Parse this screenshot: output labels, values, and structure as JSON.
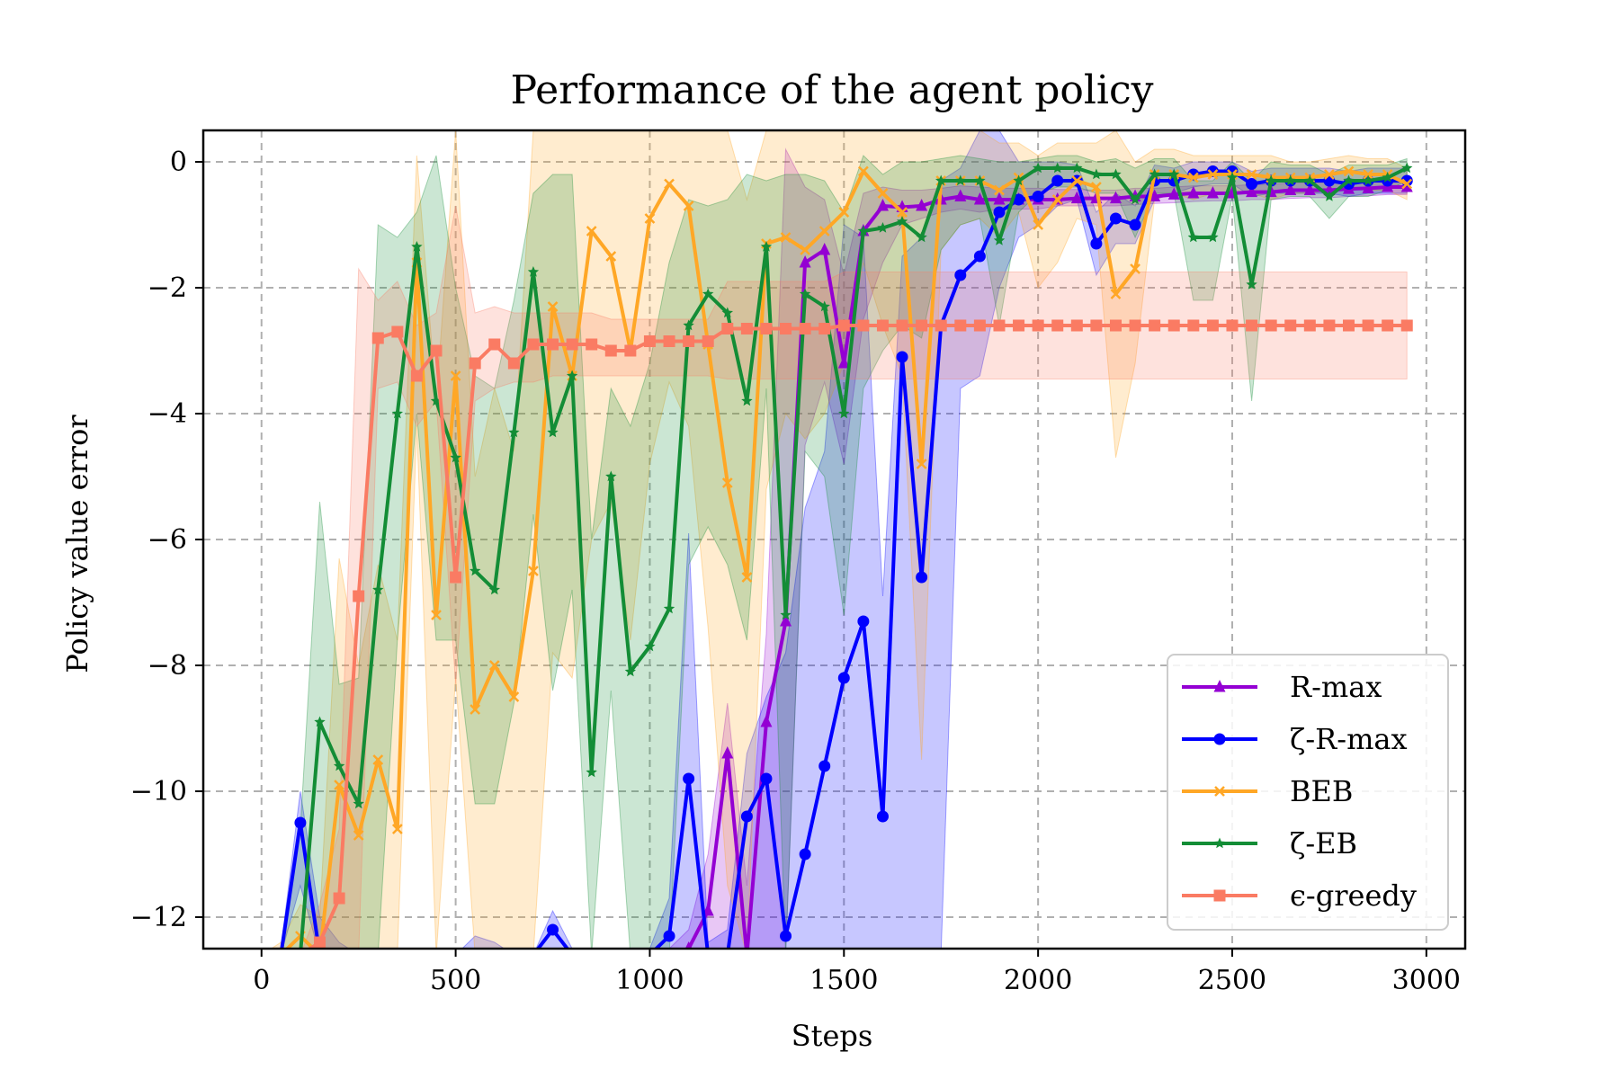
{
  "chart_data": {
    "type": "line",
    "title": "Performance of the agent policy",
    "xlabel": "Steps",
    "ylabel": "Policy value error",
    "xlim": [
      -150,
      3100
    ],
    "ylim": [
      -12.5,
      0.5
    ],
    "xticks": [
      0,
      500,
      1000,
      1500,
      2000,
      2500,
      3000
    ],
    "xtick_labels": [
      "0",
      "500",
      "1000",
      "1500",
      "2000",
      "2500",
      "3000"
    ],
    "yticks": [
      0,
      -2,
      -4,
      -6,
      -8,
      -10,
      -12
    ],
    "ytick_labels": [
      "0",
      "−2",
      "−4",
      "−6",
      "−8",
      "−10",
      "−12"
    ],
    "grid": true,
    "legend_position": "lower-right",
    "series": [
      {
        "name": "R-max",
        "color": "#9400d3",
        "marker": "triangle",
        "x": [
          1050,
          1100,
          1150,
          1200,
          1250,
          1300,
          1350,
          1400,
          1450,
          1500,
          1550,
          1600,
          1650,
          1700,
          1750,
          1800,
          1850,
          1900,
          1950,
          2000,
          2050,
          2100,
          2150,
          2200,
          2250,
          2300,
          2350,
          2400,
          2450,
          2500,
          2550,
          2600,
          2650,
          2700,
          2750,
          2800,
          2850,
          2900,
          2950
        ],
        "y": [
          -12.6,
          -12.5,
          -11.9,
          -9.4,
          -12.6,
          -8.9,
          -7.3,
          -1.6,
          -1.4,
          -3.2,
          -1.1,
          -0.7,
          -0.72,
          -0.7,
          -0.6,
          -0.55,
          -0.6,
          -0.6,
          -0.6,
          -0.6,
          -0.6,
          -0.58,
          -0.58,
          -0.58,
          -0.55,
          -0.55,
          -0.52,
          -0.5,
          -0.5,
          -0.5,
          -0.48,
          -0.48,
          -0.45,
          -0.45,
          -0.45,
          -0.43,
          -0.42,
          -0.4,
          -0.4
        ],
        "band_lower": [
          -12.6,
          -12.6,
          -12.6,
          -12.6,
          -12.6,
          -12.6,
          -12.6,
          -4.5,
          -3.5,
          -4.8,
          -2.5,
          -1.6,
          -1.0,
          -0.9,
          -0.8,
          -0.75,
          -0.8,
          -0.75,
          -0.75,
          -0.75,
          -0.7,
          -0.7,
          -0.7,
          -0.7,
          -0.68,
          -0.66,
          -0.65,
          -0.63,
          -0.62,
          -0.62,
          -0.6,
          -0.6,
          -0.58,
          -0.57,
          -0.57,
          -0.55,
          -0.54,
          -0.52,
          -0.52
        ],
        "band_upper": [
          -12.5,
          -12.2,
          -11.0,
          -8.6,
          -11.5,
          -7.5,
          0.2,
          -0.4,
          -0.6,
          -1.8,
          -0.5,
          -0.4,
          -0.45,
          -0.45,
          -0.42,
          -0.38,
          -0.4,
          -0.42,
          -0.42,
          -0.42,
          -0.44,
          -0.44,
          -0.45,
          -0.45,
          -0.42,
          -0.42,
          -0.4,
          -0.38,
          -0.38,
          -0.38,
          -0.36,
          -0.36,
          -0.33,
          -0.33,
          -0.33,
          -0.31,
          -0.3,
          -0.28,
          -0.28
        ]
      },
      {
        "name": "ζ-R-max",
        "color": "#0000ff",
        "marker": "circle",
        "x": [
          0,
          50,
          100,
          150,
          200,
          250,
          300,
          350,
          400,
          450,
          500,
          550,
          600,
          650,
          700,
          750,
          800,
          850,
          900,
          950,
          1000,
          1050,
          1100,
          1150,
          1200,
          1250,
          1300,
          1350,
          1400,
          1450,
          1500,
          1550,
          1600,
          1650,
          1700,
          1750,
          1800,
          1850,
          1900,
          1950,
          2000,
          2050,
          2100,
          2150,
          2200,
          2250,
          2300,
          2350,
          2400,
          2450,
          2500,
          2550,
          2600,
          2650,
          2700,
          2750,
          2800,
          2850,
          2900,
          2950
        ],
        "y": [
          -12.6,
          -12.6,
          -10.5,
          -12.6,
          -12.6,
          -12.6,
          -12.6,
          -12.6,
          -12.6,
          -12.6,
          -12.6,
          -12.6,
          -12.6,
          -12.6,
          -12.6,
          -12.2,
          -12.6,
          -12.6,
          -12.6,
          -12.6,
          -12.6,
          -12.3,
          -9.8,
          -12.6,
          -12.6,
          -10.4,
          -9.8,
          -12.3,
          -11.0,
          -9.6,
          -8.2,
          -7.3,
          -10.4,
          -3.1,
          -6.6,
          -2.6,
          -1.8,
          -1.5,
          -0.8,
          -0.6,
          -0.55,
          -0.3,
          -0.3,
          -1.3,
          -0.9,
          -1.0,
          -0.3,
          -0.3,
          -0.2,
          -0.15,
          -0.15,
          -0.35,
          -0.3,
          -0.3,
          -0.3,
          -0.3,
          -0.35,
          -0.3,
          -0.3,
          -0.3
        ],
        "band_lower": [
          -12.6,
          -12.6,
          -11.5,
          -12.6,
          -12.6,
          -12.6,
          -12.6,
          -12.6,
          -12.6,
          -12.6,
          -12.6,
          -12.6,
          -12.6,
          -12.6,
          -12.6,
          -12.6,
          -12.6,
          -12.6,
          -12.6,
          -12.6,
          -12.6,
          -12.6,
          -12.6,
          -12.6,
          -12.6,
          -12.6,
          -12.6,
          -12.6,
          -12.6,
          -12.6,
          -12.6,
          -12.6,
          -12.6,
          -12.6,
          -12.6,
          -12.6,
          -3.6,
          -3.4,
          -2.0,
          -1.2,
          -1.0,
          -0.7,
          -0.6,
          -1.8,
          -1.3,
          -1.3,
          -0.6,
          -0.5,
          -0.4,
          -0.35,
          -0.35,
          -0.55,
          -0.5,
          -0.5,
          -0.5,
          -0.5,
          -0.55,
          -0.5,
          -0.5,
          -0.5
        ],
        "band_upper": [
          -12.6,
          -12.5,
          -10.0,
          -12.0,
          -12.4,
          -12.6,
          -12.6,
          -12.6,
          -12.6,
          -12.6,
          -12.6,
          -12.3,
          -12.4,
          -12.6,
          -12.6,
          -11.9,
          -12.5,
          -12.6,
          -12.6,
          -12.6,
          -12.5,
          -11.7,
          -5.9,
          -12.4,
          -12.2,
          -9.4,
          -8.5,
          -7.8,
          -5.5,
          -4.6,
          -1.0,
          -1.2,
          -6.9,
          -1.5,
          -1.2,
          -0.3,
          -0.1,
          0.5,
          0.5,
          0.0,
          0.0,
          0.0,
          -0.05,
          -0.8,
          -0.5,
          -0.7,
          -0.05,
          -0.1,
          0.0,
          0.0,
          0.0,
          -0.15,
          -0.1,
          -0.1,
          -0.1,
          -0.1,
          -0.15,
          -0.1,
          -0.1,
          -0.1
        ]
      },
      {
        "name": "BEB",
        "color": "#ffa726",
        "marker": "x",
        "x": [
          0,
          50,
          100,
          150,
          200,
          250,
          300,
          350,
          400,
          450,
          500,
          550,
          600,
          650,
          700,
          750,
          800,
          850,
          900,
          950,
          1000,
          1050,
          1100,
          1150,
          1200,
          1250,
          1300,
          1350,
          1400,
          1450,
          1500,
          1550,
          1600,
          1650,
          1700,
          1750,
          1800,
          1850,
          1900,
          1950,
          2000,
          2050,
          2100,
          2150,
          2200,
          2250,
          2300,
          2350,
          2400,
          2450,
          2500,
          2550,
          2600,
          2650,
          2700,
          2750,
          2800,
          2850,
          2900,
          2950
        ],
        "y": [
          -12.6,
          -12.6,
          -12.3,
          -12.6,
          -9.9,
          -10.7,
          -9.5,
          -10.6,
          -1.6,
          -7.2,
          -3.4,
          -8.7,
          -8.0,
          -8.5,
          -6.5,
          -2.3,
          -3.4,
          -1.1,
          -1.5,
          -3.0,
          -0.9,
          -0.35,
          -0.7,
          -2.9,
          -5.1,
          -6.6,
          -1.3,
          -1.2,
          -1.4,
          -1.1,
          -0.8,
          -0.15,
          -0.5,
          -0.8,
          -4.8,
          -0.3,
          -0.3,
          -0.3,
          -0.45,
          -0.25,
          -1.0,
          -0.6,
          -0.3,
          -0.4,
          -2.1,
          -1.7,
          -0.2,
          -0.2,
          -0.25,
          -0.2,
          -0.2,
          -0.2,
          -0.25,
          -0.25,
          -0.25,
          -0.2,
          -0.15,
          -0.2,
          -0.2,
          -0.35
        ],
        "band_lower": [
          -12.6,
          -12.6,
          -12.6,
          -12.6,
          -12.6,
          -12.6,
          -12.6,
          -12.6,
          -4.2,
          -12.6,
          -8.2,
          -12.6,
          -12.6,
          -12.6,
          -12.6,
          -7.8,
          -8.2,
          -6.0,
          -5.4,
          -7.6,
          -4.8,
          -3.5,
          -4.2,
          -7.4,
          -11.5,
          -12.6,
          -5.2,
          -4.0,
          -4.4,
          -4.0,
          -3.2,
          -1.6,
          -2.6,
          -3.4,
          -9.5,
          -1.4,
          -1.0,
          -0.9,
          -1.2,
          -0.8,
          -2.0,
          -1.6,
          -0.9,
          -1.0,
          -4.7,
          -3.2,
          -0.6,
          -0.5,
          -0.6,
          -0.5,
          -0.5,
          -0.5,
          -0.6,
          -0.5,
          -0.5,
          -0.45,
          -0.4,
          -0.45,
          -0.45,
          -0.6
        ],
        "band_upper": [
          -12.6,
          -12.4,
          -11.8,
          -12.0,
          -6.3,
          -8.0,
          -6.4,
          -7.6,
          0.1,
          -3.8,
          0.5,
          -5.0,
          -3.6,
          -4.6,
          0.5,
          0.5,
          0.5,
          0.5,
          0.5,
          0.5,
          0.5,
          0.5,
          0.5,
          0.5,
          0.5,
          -0.6,
          0.5,
          0.5,
          0.5,
          0.5,
          0.5,
          0.5,
          0.5,
          0.5,
          0.5,
          0.5,
          0.5,
          0.5,
          0.3,
          0.3,
          0.1,
          0.3,
          0.3,
          0.3,
          0.5,
          0.0,
          0.2,
          0.2,
          0.1,
          0.1,
          0.1,
          0.1,
          0.1,
          0.0,
          0.0,
          0.05,
          0.1,
          0.05,
          0.05,
          -0.1
        ]
      },
      {
        "name": "ζ-EB",
        "color": "#138d36",
        "marker": "star",
        "x": [
          0,
          50,
          100,
          150,
          200,
          250,
          300,
          350,
          400,
          450,
          500,
          550,
          600,
          650,
          700,
          750,
          800,
          850,
          900,
          950,
          1000,
          1050,
          1100,
          1150,
          1200,
          1250,
          1300,
          1350,
          1400,
          1450,
          1500,
          1550,
          1600,
          1650,
          1700,
          1750,
          1800,
          1850,
          1900,
          1950,
          2000,
          2050,
          2100,
          2150,
          2200,
          2250,
          2300,
          2350,
          2400,
          2450,
          2500,
          2550,
          2600,
          2650,
          2700,
          2750,
          2800,
          2850,
          2900,
          2950
        ],
        "y": [
          -12.6,
          -12.6,
          -12.6,
          -8.9,
          -9.6,
          -10.2,
          -6.8,
          -4.0,
          -1.35,
          -3.8,
          -4.7,
          -6.5,
          -6.8,
          -4.3,
          -1.75,
          -4.3,
          -3.4,
          -9.7,
          -5.0,
          -8.1,
          -7.7,
          -7.1,
          -2.6,
          -2.1,
          -2.4,
          -3.8,
          -1.35,
          -7.2,
          -2.1,
          -2.3,
          -4.0,
          -1.1,
          -1.05,
          -0.95,
          -1.2,
          -0.3,
          -0.3,
          -0.3,
          -1.25,
          -0.3,
          -0.1,
          -0.1,
          -0.1,
          -0.2,
          -0.2,
          -0.6,
          -0.2,
          -0.2,
          -1.2,
          -1.2,
          -0.25,
          -1.95,
          -0.3,
          -0.3,
          -0.3,
          -0.55,
          -0.3,
          -0.3,
          -0.25,
          -0.1
        ],
        "band_lower": [
          -12.6,
          -12.6,
          -12.6,
          -12.6,
          -12.6,
          -12.6,
          -12.6,
          -7.6,
          -4.0,
          -7.6,
          -7.6,
          -10.2,
          -10.2,
          -8.6,
          -5.6,
          -8.4,
          -6.8,
          -12.6,
          -8.4,
          -12.6,
          -12.6,
          -12.6,
          -6.4,
          -5.8,
          -6.4,
          -7.6,
          -3.6,
          -12.6,
          -4.6,
          -5.0,
          -7.2,
          -3.6,
          -3.0,
          -2.6,
          -2.8,
          -1.4,
          -1.0,
          -0.9,
          -2.6,
          -0.8,
          -0.5,
          -0.4,
          -0.4,
          -0.5,
          -0.5,
          -1.2,
          -0.5,
          -0.5,
          -2.2,
          -2.2,
          -0.55,
          -3.8,
          -0.6,
          -0.55,
          -0.55,
          -0.9,
          -0.55,
          -0.55,
          -0.45,
          -0.3
        ],
        "band_upper": [
          -12.6,
          -12.5,
          -10.6,
          -5.4,
          -8.3,
          -8.2,
          -1.0,
          -1.2,
          -0.8,
          0.1,
          -2.0,
          -3.4,
          -3.6,
          -2.2,
          -0.5,
          -0.2,
          -0.2,
          -6.0,
          -3.6,
          -4.2,
          -3.2,
          -1.6,
          -0.6,
          -0.7,
          -0.6,
          -0.2,
          -0.3,
          -0.2,
          -0.2,
          -0.3,
          -0.8,
          0.1,
          -0.2,
          0.0,
          0.0,
          0.05,
          0.1,
          0.05,
          0.0,
          0.0,
          0.05,
          0.1,
          0.1,
          0.0,
          0.05,
          -0.1,
          0.05,
          0.05,
          -0.3,
          -0.3,
          0.0,
          -0.3,
          0.0,
          -0.05,
          -0.05,
          -0.2,
          -0.05,
          -0.05,
          -0.05,
          0.05
        ]
      },
      {
        "name": "ϵ-greedy",
        "color": "#fa7b63",
        "marker": "square",
        "x": [
          0,
          50,
          100,
          150,
          200,
          250,
          300,
          350,
          400,
          450,
          500,
          550,
          600,
          650,
          700,
          750,
          800,
          850,
          900,
          950,
          1000,
          1050,
          1100,
          1150,
          1200,
          1250,
          1300,
          1350,
          1400,
          1450,
          1500,
          1550,
          1600,
          1650,
          1700,
          1750,
          1800,
          1850,
          1900,
          1950,
          2000,
          2050,
          2100,
          2150,
          2200,
          2250,
          2300,
          2350,
          2400,
          2450,
          2500,
          2550,
          2600,
          2650,
          2700,
          2750,
          2800,
          2850,
          2900,
          2950
        ],
        "y": [
          -12.6,
          -12.6,
          -12.6,
          -12.4,
          -11.7,
          -6.9,
          -2.8,
          -2.7,
          -3.4,
          -3.0,
          -6.6,
          -3.2,
          -2.9,
          -3.2,
          -2.9,
          -2.9,
          -2.9,
          -2.9,
          -3.0,
          -3.0,
          -2.85,
          -2.85,
          -2.85,
          -2.85,
          -2.65,
          -2.65,
          -2.65,
          -2.65,
          -2.65,
          -2.65,
          -2.6,
          -2.6,
          -2.6,
          -2.6,
          -2.6,
          -2.6,
          -2.6,
          -2.6,
          -2.6,
          -2.6,
          -2.6,
          -2.6,
          -2.6,
          -2.6,
          -2.6,
          -2.6,
          -2.6,
          -2.6,
          -2.6,
          -2.6,
          -2.6,
          -2.6,
          -2.6,
          -2.6,
          -2.6,
          -2.6,
          -2.6,
          -2.6,
          -2.6,
          -2.6
        ],
        "band_lower": [
          -12.6,
          -12.6,
          -12.6,
          -12.6,
          -12.6,
          -12.6,
          -3.6,
          -3.5,
          -4.2,
          -3.8,
          -8.3,
          -3.8,
          -3.6,
          -3.5,
          -3.5,
          -3.4,
          -3.4,
          -3.4,
          -3.4,
          -3.4,
          -3.4,
          -3.4,
          -3.4,
          -3.4,
          -3.45,
          -3.45,
          -3.45,
          -3.45,
          -3.45,
          -3.45,
          -3.45,
          -3.45,
          -3.45,
          -3.45,
          -3.45,
          -3.45,
          -3.45,
          -3.45,
          -3.45,
          -3.45,
          -3.45,
          -3.45,
          -3.45,
          -3.45,
          -3.45,
          -3.45,
          -3.45,
          -3.45,
          -3.45,
          -3.45,
          -3.45,
          -3.45,
          -3.45,
          -3.45,
          -3.45,
          -3.45,
          -3.45,
          -3.45,
          -3.45,
          -3.45
        ],
        "band_upper": [
          -12.6,
          -12.6,
          -12.6,
          -11.8,
          -10.6,
          -1.7,
          -2.2,
          -1.9,
          -2.6,
          -2.4,
          -0.7,
          -2.4,
          -2.3,
          -2.4,
          -2.4,
          -2.4,
          -2.4,
          -2.4,
          -2.5,
          -2.5,
          -2.5,
          -2.5,
          -2.5,
          -2.5,
          -1.9,
          -1.9,
          -1.9,
          -1.9,
          -1.9,
          -1.9,
          -1.75,
          -1.75,
          -1.75,
          -1.75,
          -1.75,
          -1.75,
          -1.75,
          -1.75,
          -1.75,
          -1.75,
          -1.75,
          -1.75,
          -1.75,
          -1.75,
          -1.75,
          -1.75,
          -1.75,
          -1.75,
          -1.75,
          -1.75,
          -1.75,
          -1.75,
          -1.75,
          -1.75,
          -1.75,
          -1.75,
          -1.75,
          -1.75,
          -1.75,
          -1.75
        ]
      }
    ]
  }
}
